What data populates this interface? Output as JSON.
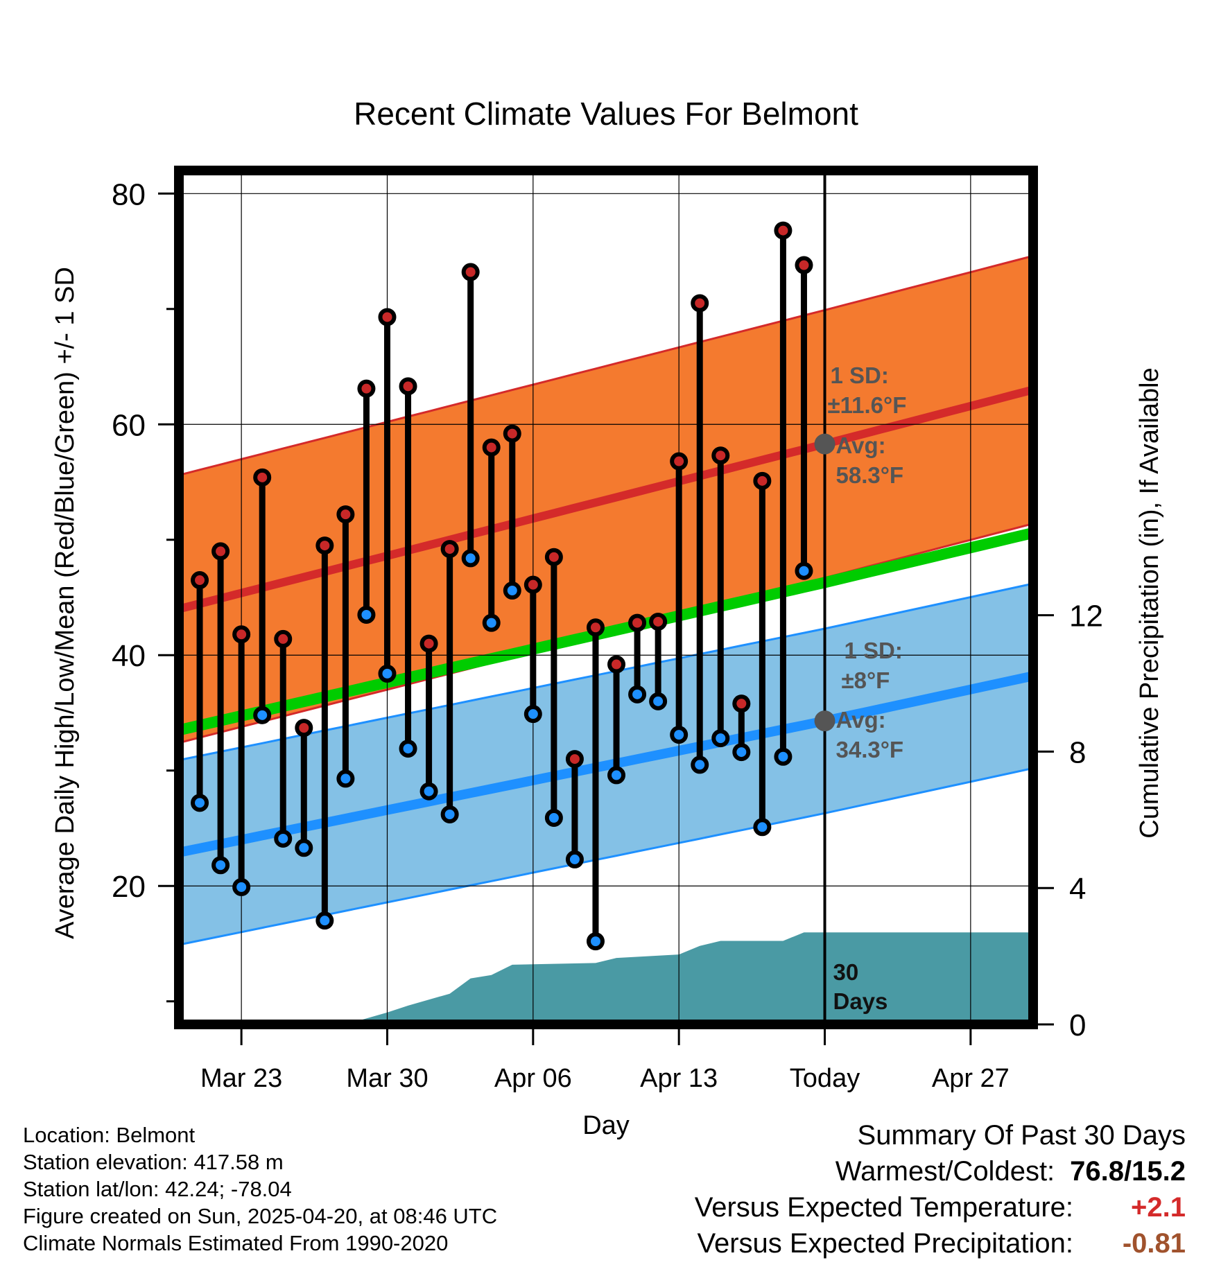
{
  "chart_data": {
    "type": "line",
    "title": "Recent Climate Values For Belmont",
    "xlabel": "Day",
    "ylabel": "Average Daily High/Low/Mean (Red/Blue/Green) +/- 1 SD",
    "y2label": "Cumulative Precipitation (in), If Available",
    "x_tick_labels": [
      "Mar 23",
      "Mar 30",
      "Apr 06",
      "Apr 13",
      "Today",
      "Apr 27"
    ],
    "x_tick_dates": [
      "2025-03-23",
      "2025-03-30",
      "2025-04-06",
      "2025-04-13",
      "2025-04-20",
      "2025-04-27"
    ],
    "x_range": [
      "2025-03-20",
      "2025-04-30"
    ],
    "today": "2025-04-20",
    "ylim": [
      8,
      82
    ],
    "y_ticks": [
      20,
      40,
      60,
      80
    ],
    "y_minor_ticks": [
      10,
      30,
      50,
      70
    ],
    "y2lim": [
      0,
      24
    ],
    "y2_ticks": [
      0,
      4,
      8,
      12
    ],
    "grid": true,
    "daily_obs": [
      {
        "date": "2025-03-21",
        "high": 46.5,
        "low": 27.2
      },
      {
        "date": "2025-03-22",
        "high": 49.0,
        "low": 21.8
      },
      {
        "date": "2025-03-23",
        "high": 41.8,
        "low": 19.9
      },
      {
        "date": "2025-03-24",
        "high": 55.4,
        "low": 34.8
      },
      {
        "date": "2025-03-25",
        "high": 41.4,
        "low": 24.1
      },
      {
        "date": "2025-03-26",
        "high": 33.7,
        "low": 23.3
      },
      {
        "date": "2025-03-27",
        "high": 49.5,
        "low": 17.0
      },
      {
        "date": "2025-03-28",
        "high": 52.2,
        "low": 29.3
      },
      {
        "date": "2025-03-29",
        "high": 63.1,
        "low": 43.5
      },
      {
        "date": "2025-03-30",
        "high": 69.3,
        "low": 38.4
      },
      {
        "date": "2025-03-31",
        "high": 63.3,
        "low": 31.9
      },
      {
        "date": "2025-04-01",
        "high": 41.0,
        "low": 28.2
      },
      {
        "date": "2025-04-02",
        "high": 49.2,
        "low": 26.2
      },
      {
        "date": "2025-04-03",
        "high": 73.2,
        "low": 48.4
      },
      {
        "date": "2025-04-04",
        "high": 58.0,
        "low": 42.8
      },
      {
        "date": "2025-04-05",
        "high": 59.2,
        "low": 45.6
      },
      {
        "date": "2025-04-06",
        "high": 46.1,
        "low": 34.9
      },
      {
        "date": "2025-04-07",
        "high": 48.5,
        "low": 25.9
      },
      {
        "date": "2025-04-08",
        "high": 31.0,
        "low": 22.3
      },
      {
        "date": "2025-04-09",
        "high": 42.4,
        "low": 15.2
      },
      {
        "date": "2025-04-10",
        "high": 39.2,
        "low": 29.6
      },
      {
        "date": "2025-04-11",
        "high": 42.8,
        "low": 36.6
      },
      {
        "date": "2025-04-12",
        "high": 42.9,
        "low": 36.0
      },
      {
        "date": "2025-04-13",
        "high": 56.8,
        "low": 33.1
      },
      {
        "date": "2025-04-14",
        "high": 70.5,
        "low": 30.5
      },
      {
        "date": "2025-04-15",
        "high": 57.3,
        "low": 32.8
      },
      {
        "date": "2025-04-16",
        "high": 35.8,
        "low": 31.6
      },
      {
        "date": "2025-04-17",
        "high": 55.1,
        "low": 25.1
      },
      {
        "date": "2025-04-18",
        "high": 76.8,
        "low": 31.2
      },
      {
        "date": "2025-04-19",
        "high": 73.8,
        "low": 47.3
      }
    ],
    "normal_high": [
      {
        "date": "2025-03-20",
        "value": 44.0
      },
      {
        "date": "2025-04-20",
        "value": 58.3
      },
      {
        "date": "2025-04-30",
        "value": 63.0
      }
    ],
    "normal_low": [
      {
        "date": "2025-03-20",
        "value": 22.9
      },
      {
        "date": "2025-04-20",
        "value": 34.3
      },
      {
        "date": "2025-04-30",
        "value": 38.2
      }
    ],
    "normal_mean": [
      {
        "date": "2025-03-20",
        "value": 33.5
      },
      {
        "date": "2025-04-20",
        "value": 46.3
      },
      {
        "date": "2025-04-30",
        "value": 50.6
      }
    ],
    "high_sd": 11.6,
    "low_sd": 8.0,
    "cumulative_precip": [
      {
        "date": "2025-03-20",
        "value": 0.0
      },
      {
        "date": "2025-03-28",
        "value": 0.0
      },
      {
        "date": "2025-03-30",
        "value": 0.35
      },
      {
        "date": "2025-03-31",
        "value": 0.55
      },
      {
        "date": "2025-04-02",
        "value": 0.9
      },
      {
        "date": "2025-04-03",
        "value": 1.35
      },
      {
        "date": "2025-04-04",
        "value": 1.45
      },
      {
        "date": "2025-04-05",
        "value": 1.75
      },
      {
        "date": "2025-04-09",
        "value": 1.8
      },
      {
        "date": "2025-04-10",
        "value": 1.95
      },
      {
        "date": "2025-04-13",
        "value": 2.05
      },
      {
        "date": "2025-04-14",
        "value": 2.3
      },
      {
        "date": "2025-04-15",
        "value": 2.45
      },
      {
        "date": "2025-04-18",
        "value": 2.45
      },
      {
        "date": "2025-04-19",
        "value": 2.7
      },
      {
        "date": "2025-04-30",
        "value": 2.7
      }
    ],
    "annotations": {
      "high_sd_label": "1 SD:",
      "high_sd_value": "±11.6°F",
      "high_avg_label": "Avg:",
      "high_avg_value": "58.3°F",
      "low_sd_label": "1 SD:",
      "low_sd_value": "±8°F",
      "low_avg_label": "Avg:",
      "low_avg_value": "34.3°F",
      "days_line1": "30",
      "days_line2": "Days"
    },
    "colors": {
      "high_band": "#f47a2f",
      "high_line": "#d42a2a",
      "low_band": "#84c1e6",
      "low_line": "#1e90ff",
      "mean_line": "#00cc00",
      "precip": "#4a9aa4",
      "high_marker": "#c82828",
      "low_marker": "#1e90ff",
      "annotation_text": "#555555"
    }
  },
  "footer": {
    "location": "Location: Belmont",
    "elevation": "Station elevation: 417.58 m",
    "latlon": "Station lat/lon: 42.24; -78.04",
    "created": "Figure created on Sun, 2025-04-20, at 08:46 UTC",
    "normals": "Climate Normals Estimated From 1990-2020"
  },
  "summary": {
    "title": "Summary Of Past 30 Days",
    "warm_cold_label": "Warmest/Coldest:",
    "warm_cold_value": "76.8/15.2",
    "temp_label": "Versus Expected Temperature:",
    "temp_value": "+2.1",
    "temp_color": "#d42a2a",
    "precip_label": "Versus Expected Precipitation:",
    "precip_value": "-0.81",
    "precip_color": "#a0522d"
  }
}
